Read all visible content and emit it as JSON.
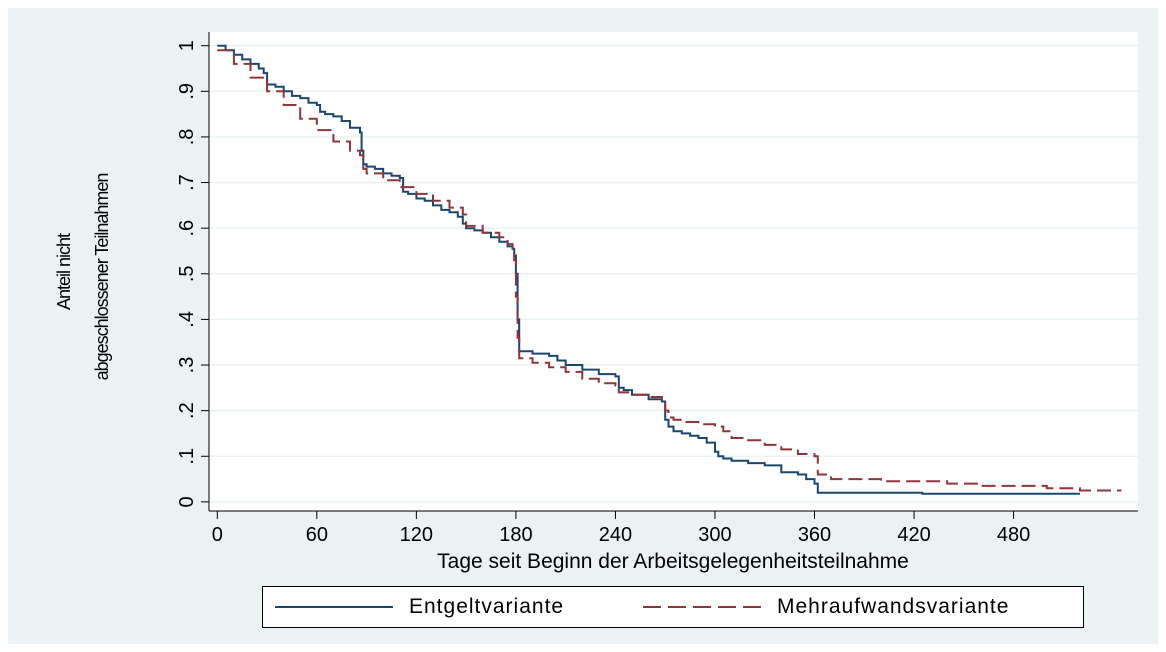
{
  "chart_data": {
    "type": "line",
    "title": "",
    "xlabel": "Tage seit Beginn der Arbeitsgelegenheitsteilnahme",
    "ylabel_lines": [
      "Anteil nicht",
      "abgeschlossener Teilnahmen"
    ],
    "xlim": [
      -5,
      555
    ],
    "ylim": [
      -0.02,
      1.03
    ],
    "x_ticks": [
      0,
      60,
      120,
      180,
      240,
      300,
      360,
      420,
      480
    ],
    "x_tick_labels": [
      "0",
      "60",
      "120",
      "180",
      "240",
      "300",
      "360",
      "420",
      "480"
    ],
    "y_ticks": [
      0,
      0.1,
      0.2,
      0.3,
      0.4,
      0.5,
      0.6,
      0.7,
      0.8,
      0.9,
      1
    ],
    "y_tick_labels": [
      "0",
      ".1",
      ".2",
      ".3",
      ".4",
      ".5",
      ".6",
      ".7",
      ".8",
      ".9",
      "1"
    ],
    "grid": true,
    "legend_position": "bottom",
    "series": [
      {
        "name": "Entgeltvariante",
        "color": "#1a476f",
        "dash": "solid",
        "x": [
          0,
          5,
          10,
          15,
          20,
          25,
          28,
          30,
          35,
          40,
          45,
          50,
          55,
          60,
          62,
          65,
          70,
          75,
          80,
          86,
          87,
          88,
          90,
          95,
          100,
          105,
          110,
          112,
          115,
          120,
          125,
          130,
          135,
          140,
          145,
          148,
          150,
          155,
          160,
          165,
          170,
          175,
          178,
          179,
          180,
          181,
          182,
          185,
          190,
          195,
          200,
          205,
          210,
          220,
          230,
          240,
          242,
          245,
          250,
          260,
          268,
          270,
          272,
          275,
          280,
          285,
          290,
          295,
          300,
          302,
          305,
          310,
          320,
          330,
          340,
          350,
          355,
          360,
          362,
          370,
          380,
          400,
          420,
          425,
          440,
          460,
          480,
          500,
          510,
          520
        ],
        "y": [
          1.0,
          0.99,
          0.98,
          0.97,
          0.96,
          0.95,
          0.94,
          0.915,
          0.91,
          0.9,
          0.89,
          0.885,
          0.875,
          0.87,
          0.855,
          0.85,
          0.845,
          0.835,
          0.82,
          0.81,
          0.77,
          0.74,
          0.735,
          0.73,
          0.72,
          0.715,
          0.71,
          0.68,
          0.675,
          0.665,
          0.66,
          0.65,
          0.64,
          0.635,
          0.625,
          0.61,
          0.6,
          0.595,
          0.59,
          0.58,
          0.57,
          0.56,
          0.555,
          0.54,
          0.5,
          0.4,
          0.33,
          0.33,
          0.325,
          0.325,
          0.32,
          0.31,
          0.3,
          0.29,
          0.28,
          0.275,
          0.25,
          0.245,
          0.235,
          0.225,
          0.22,
          0.18,
          0.165,
          0.155,
          0.15,
          0.145,
          0.14,
          0.13,
          0.11,
          0.1,
          0.095,
          0.09,
          0.085,
          0.08,
          0.065,
          0.06,
          0.05,
          0.04,
          0.02,
          0.02,
          0.02,
          0.02,
          0.02,
          0.018,
          0.018,
          0.018,
          0.018,
          0.018,
          0.018,
          0.018
        ]
      },
      {
        "name": "Mehraufwandsvariante",
        "color": "#90353b",
        "dash": "dashed",
        "x": [
          0,
          10,
          20,
          30,
          40,
          50,
          60,
          70,
          80,
          86,
          88,
          90,
          100,
          110,
          120,
          130,
          140,
          148,
          150,
          160,
          170,
          175,
          178,
          179,
          180,
          181,
          182,
          190,
          200,
          210,
          220,
          230,
          240,
          242,
          250,
          260,
          268,
          270,
          272,
          275,
          280,
          290,
          300,
          305,
          310,
          320,
          330,
          340,
          350,
          360,
          362,
          370,
          380,
          400,
          420,
          440,
          460,
          480,
          500,
          520,
          540,
          545
        ],
        "y": [
          0.99,
          0.96,
          0.93,
          0.9,
          0.87,
          0.84,
          0.815,
          0.79,
          0.77,
          0.76,
          0.73,
          0.72,
          0.705,
          0.69,
          0.675,
          0.66,
          0.645,
          0.63,
          0.605,
          0.59,
          0.58,
          0.565,
          0.555,
          0.53,
          0.45,
          0.36,
          0.315,
          0.305,
          0.295,
          0.285,
          0.27,
          0.26,
          0.255,
          0.24,
          0.235,
          0.23,
          0.225,
          0.2,
          0.185,
          0.18,
          0.175,
          0.17,
          0.165,
          0.155,
          0.14,
          0.135,
          0.125,
          0.115,
          0.105,
          0.1,
          0.06,
          0.05,
          0.05,
          0.045,
          0.045,
          0.04,
          0.035,
          0.035,
          0.03,
          0.025,
          0.025,
          0.025
        ]
      }
    ]
  }
}
